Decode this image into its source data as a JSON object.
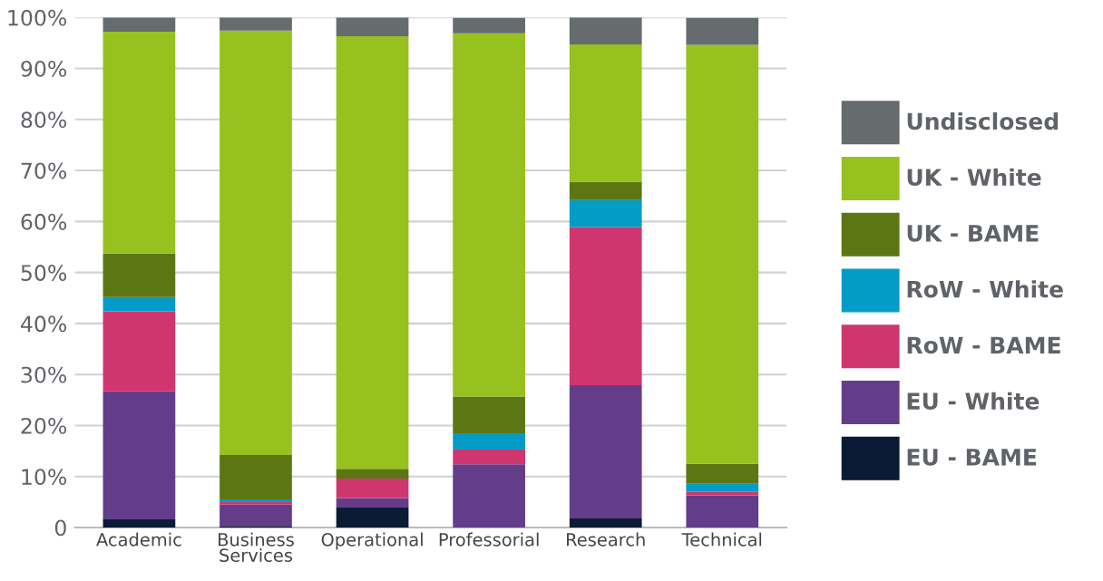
{
  "chart_data": {
    "type": "bar",
    "stacked": true,
    "categories": [
      "Academic",
      "Business\nServices",
      "Operational",
      "Professorial",
      "Research",
      "Technical"
    ],
    "series": [
      {
        "name": "EU - BAME",
        "color": "#0b1b35",
        "values": [
          1.6,
          0.3,
          3.9,
          null,
          1.8,
          null
        ]
      },
      {
        "name": "EU - White",
        "color": "#633d8a",
        "values": [
          25.1,
          4.2,
          1.9,
          12.4,
          26.1,
          6.3
        ]
      },
      {
        "name": "RoW - BAME",
        "color": "#d0366e",
        "values": [
          15.7,
          0.5,
          3.8,
          2.9,
          31.0,
          0.7
        ]
      },
      {
        "name": "RoW - White",
        "color": "#029cc6",
        "values": [
          2.8,
          0.5,
          0,
          3.2,
          5.3,
          1.6
        ]
      },
      {
        "name": "UK - BAME",
        "color": "#5d7614",
        "values": [
          8.5,
          8.7,
          1.9,
          7.2,
          3.6,
          3.9
        ]
      },
      {
        "name": "UK - White",
        "color": "#96c11f",
        "values": [
          43.5,
          83.2,
          84.8,
          71.2,
          26.9,
          82.1
        ]
      },
      {
        "name": "Undisclosed",
        "color": "#666b6e",
        "values": [
          2.8,
          2.6,
          3.7,
          3.0,
          5.3,
          5.3
        ]
      }
    ],
    "ylim": [
      0,
      100
    ],
    "yticks": [
      0,
      {
        "value": 10,
        "label": "10%"
      },
      {
        "value": 20,
        "label": "20%"
      },
      {
        "value": 30,
        "label": "30%"
      },
      {
        "value": 40,
        "label": "40%"
      },
      {
        "value": 50,
        "label": "50%"
      },
      {
        "value": 60,
        "label": "60%"
      },
      {
        "value": 70,
        "label": "70%"
      },
      {
        "value": 80,
        "label": "80%"
      },
      {
        "value": 90,
        "label": "90%"
      },
      {
        "value": 100,
        "label": "100%"
      }
    ],
    "grid": "y",
    "legend": "right"
  }
}
